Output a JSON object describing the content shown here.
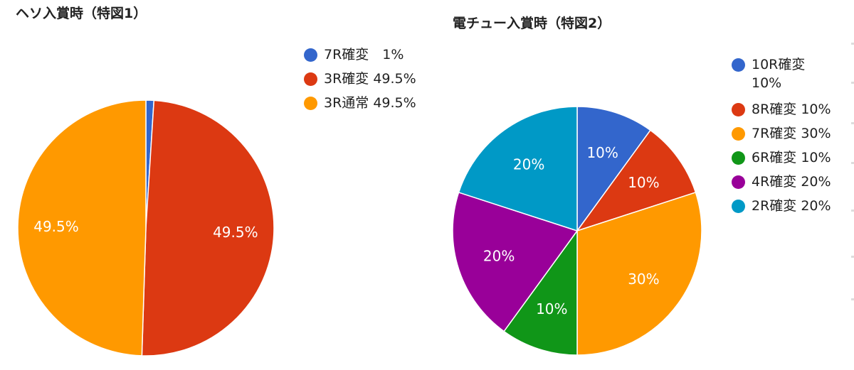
{
  "chart_data": [
    {
      "type": "pie",
      "title": "ヘソ入賞時（特図1）",
      "slices": [
        {
          "label": "7R確変",
          "value": 1,
          "display": "1%",
          "legend": "7R確変　1%",
          "color": "#3366cc"
        },
        {
          "label": "3R確変",
          "value": 49.5,
          "display": "49.5%",
          "legend": "3R確変 49.5%",
          "color": "#dc3912"
        },
        {
          "label": "3R通常",
          "value": 49.5,
          "display": "49.5%",
          "legend": "3R通常 49.5%",
          "color": "#ff9900"
        }
      ],
      "legend_position": "top-right"
    },
    {
      "type": "pie",
      "title": "電チュー入賞時（特図2）",
      "slices": [
        {
          "label": "10R確変",
          "value": 10,
          "display": "10%",
          "legend": "10R確変 10%",
          "color": "#3366cc"
        },
        {
          "label": "8R確変",
          "value": 10,
          "display": "10%",
          "legend": "8R確変 10%",
          "color": "#dc3912"
        },
        {
          "label": "7R確変",
          "value": 30,
          "display": "30%",
          "legend": "7R確変 30%",
          "color": "#ff9900"
        },
        {
          "label": "6R確変",
          "value": 10,
          "display": "10%",
          "legend": "6R確変 10%",
          "color": "#109618"
        },
        {
          "label": "4R確変",
          "value": 20,
          "display": "20%",
          "legend": "4R確変 20%",
          "color": "#990099"
        },
        {
          "label": "2R確変",
          "value": 20,
          "display": "20%",
          "legend": "2R確変 20%",
          "color": "#0099c6"
        }
      ],
      "legend_position": "right"
    }
  ]
}
